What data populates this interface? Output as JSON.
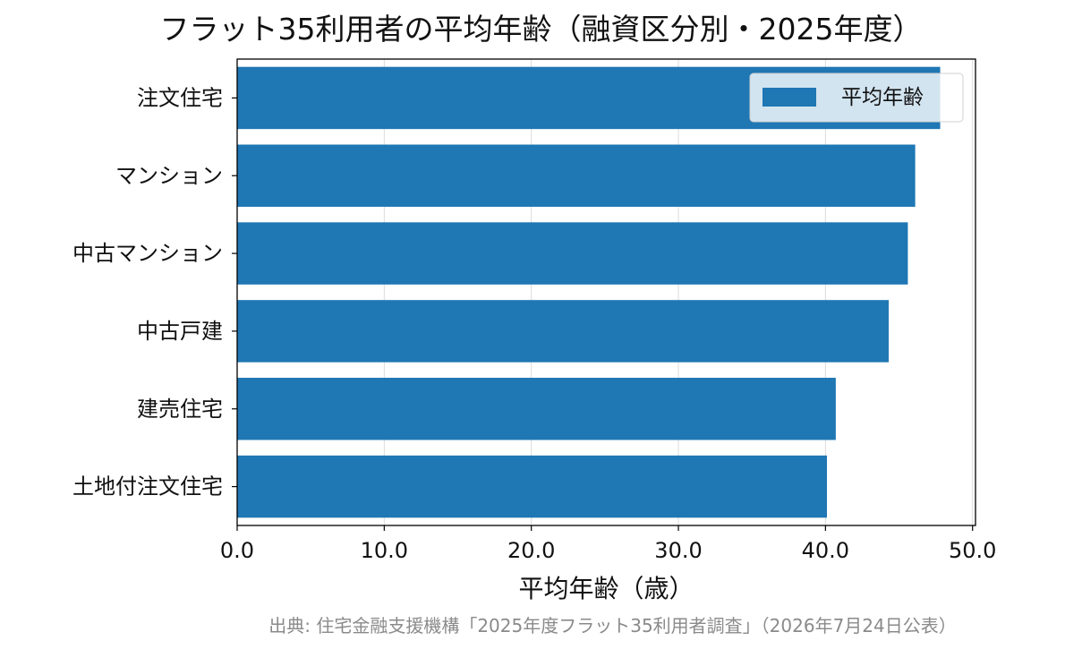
{
  "chart_data": {
    "type": "bar",
    "orientation": "horizontal",
    "title": "フラット35利用者の平均年齢（融資区分別・2025年度）",
    "xlabel": "平均年齢（歳）",
    "ylabel": "",
    "categories": [
      "注文住宅",
      "マンション",
      "中古マンション",
      "中古戸建",
      "建売住宅",
      "土地付注文住宅"
    ],
    "series": [
      {
        "name": "平均年齢",
        "values": [
          47.8,
          46.1,
          45.6,
          44.3,
          40.7,
          40.1
        ]
      }
    ],
    "xlim": [
      0,
      50.2
    ],
    "xticks": [
      0,
      10,
      20,
      30,
      40,
      50
    ],
    "xtick_labels": [
      "0.0",
      "10.0",
      "20.0",
      "30.0",
      "40.0",
      "50.0"
    ],
    "grid": "vertical",
    "legend_position": "top-right",
    "bar_color": "#1f77b4"
  },
  "source_note": "出典: 住宅金融支援機構「2025年度フラット35利用者調査」（2026年7月24日公表）"
}
